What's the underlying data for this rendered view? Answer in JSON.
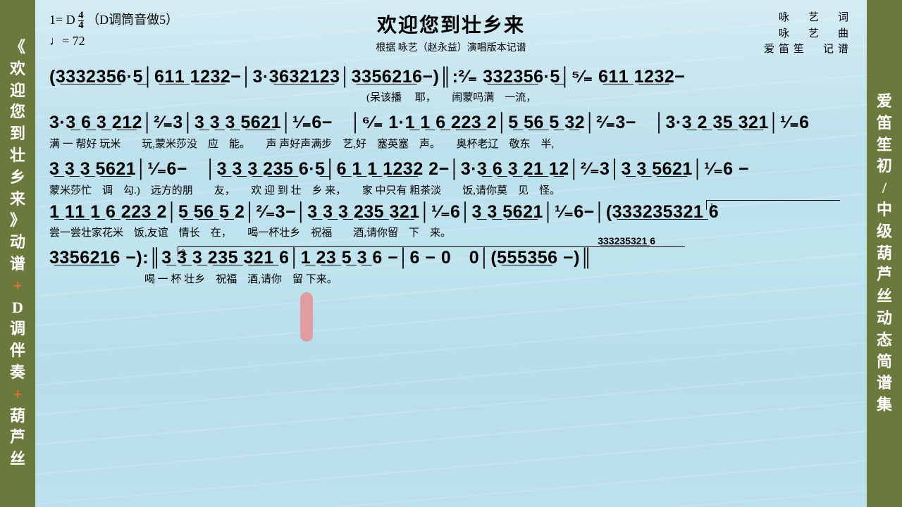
{
  "left_sidebar": "《欢迎您到壮乡来》动谱+D调伴奏+葫芦丝",
  "right_sidebar": "爱笛笙初/中级葫芦丝动态简谱集",
  "header": {
    "key_line": "1= D ",
    "time_top": "4",
    "time_bot": "4",
    "key_note": "（D调筒音做5）",
    "tempo": "♩= 72",
    "title": "欢迎您到壮乡来",
    "subtitle": "根据 咏艺（赵永益）演唱版本记谱",
    "credits": [
      "咏　艺　词",
      "咏　艺　曲",
      "爱笛笙　记谱"
    ]
  },
  "rows": [
    {
      "n": "(3̲3̲3̲2̲3̲5̲6·5̲│6̲1̲1̲ 1̲2̲3̲2−│3·3̲6̲3̲2̲1̲2̲3│3̲3̲5̲6̲2̲1̲6−)║:²⁄₌ 3̲3̲2̲3̲5̲6·5̲│⁵⁄₌ 6̲1̲1̲ 1̲2̲3̲2−",
      "l": "　　　　　　　　　　　　　　　　　　　　　　　　　　　　　　(呆该播　 耶，　　闹蒙吗满　一流，"
    },
    {
      "n": "3·3̲ 6̲ 3̲ 2̲1̲2│²⁄₌3│3̲ 3̲ 3̲ 5̲6̲2̲1│¹⁄₌6−　│⁶⁄₌ 1·1̲ 1̲ 6̲ 2̲2̲3̲ 2│5̲ 5̲6̲ 5̲ 3̲2│²⁄₌3−　│3·3̲ 2̲ 3̲5̲ 3̲2̲1│¹⁄₌6",
      "l": "满 一 帮好 玩米　　玩,蒙米莎没　应　能。　　声 声好声满步　艺,好　塞英塞　声。　　奥杯老辽　敬东　半,"
    },
    {
      "n": "3̲ 3̲ 3̲ 5̲6̲2̲1│¹⁄₌6−　│3̲ 3̲ 3̲ 2̲3̲5̲ 6·5̲│6̲ 1̲ 1̲ 1̲2̲3̲2 2−│3·3̲ 6̲ 3̲ 2̲1̲ 1̲2│²⁄₌3│3̲ 3̲ 5̲6̲2̲1│¹⁄₌6 −",
      "l": "蒙米莎忙　调　勾.)　远方的朋　　友，　　欢 迎 到 壮　乡 来，　　家 中只有 粗茶淡　　饭,请你莫　见　怪。"
    },
    {
      "n": "1̲ 1̲1̲ 1̲ 6̲ 2̲2̲3̲ 2│5̲ 5̲6̲ 5̲ 2│²⁄₌3−│3̲ 3̲ 3̲ 2̲3̲5̲ 3̲2̲1│¹⁄₌6│3̲ 3̲ 5̲6̲2̲1│¹⁄₌6−│(3̲3̲3̲2̲3̲5̲3̲2̲1̲ 6",
      "l": "尝一尝壮家花米　饭,友谊　情长　在，　　喝一杯壮乡　祝福　　酒,请你留　下　来。"
    },
    {
      "n": "3̲3̲5̲6̲2̲1̲6 −):║3̲ 3̲ 3̲ 2̲3̲5̲ 3̲2̲1̲ 6│1̲ 2̲3̲ 5̲ 3̲ 6 −│6 − 0　0│(5̲5̲5̲3̲5̲6 −)║",
      "l": "　　　　　　　　　喝 一 杯 壮乡　祝福　酒,请你　留 下来。",
      "extra": "3̲3̲3̲2̲3̲5̲3̲2̲1̲ 6"
    }
  ]
}
